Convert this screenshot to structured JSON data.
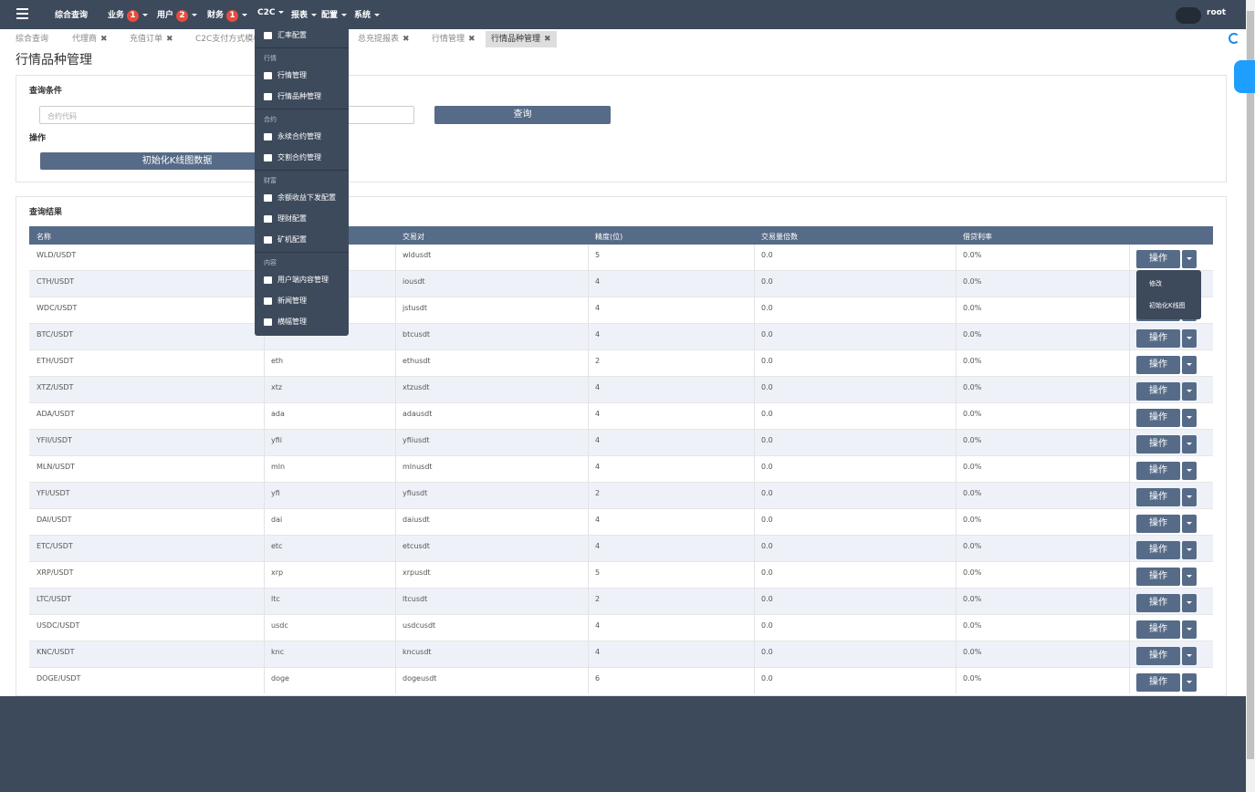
{
  "nav": {
    "items": [
      {
        "label": "综合查询"
      },
      {
        "label": "业务",
        "badge": 1
      },
      {
        "label": "用户",
        "badge": 2
      },
      {
        "label": "财务",
        "badge": 1
      },
      {
        "label": "C2C"
      },
      {
        "label": "报表"
      },
      {
        "label": "配置"
      },
      {
        "label": "系统"
      }
    ],
    "user": "root"
  },
  "tabs": [
    "综合查询",
    "代理商",
    "充值订单",
    "C2C支付方式模板",
    "总充提报表",
    "行情管理",
    "行情品种管理"
  ],
  "page_title": "行情品种管理",
  "query": {
    "heading": "查询条件",
    "placeholder": "合约代码",
    "button": "查询",
    "ops_heading": "操作",
    "init_button": "初始化K线图数据"
  },
  "results": {
    "heading": "查询结果",
    "columns": [
      "名称",
      null,
      "交易对",
      "精度(位)",
      "交易量倍数",
      "借贷利率"
    ],
    "rows": [
      [
        "WLD/USDT",
        null,
        "wldusdt",
        "5",
        "0.0",
        "0.0%"
      ],
      [
        "CTH/USDT",
        null,
        "iousdt",
        "4",
        "0.0",
        "0.0%"
      ],
      [
        "WDC/USDT",
        null,
        "jstusdt",
        "4",
        "0.0",
        "0.0%"
      ],
      [
        "BTC/USDT",
        null,
        "btcusdt",
        "4",
        "0.0",
        "0.0%"
      ],
      [
        "ETH/USDT",
        "eth",
        "ethusdt",
        "2",
        "0.0",
        "0.0%"
      ],
      [
        "XTZ/USDT",
        "xtz",
        "xtzusdt",
        "4",
        "0.0",
        "0.0%"
      ],
      [
        "ADA/USDT",
        "ada",
        "adausdt",
        "4",
        "0.0",
        "0.0%"
      ],
      [
        "YFII/USDT",
        "yfii",
        "yfiiusdt",
        "4",
        "0.0",
        "0.0%"
      ],
      [
        "MLN/USDT",
        "mln",
        "mlnusdt",
        "4",
        "0.0",
        "0.0%"
      ],
      [
        "YFI/USDT",
        "yfi",
        "yfiusdt",
        "2",
        "0.0",
        "0.0%"
      ],
      [
        "DAI/USDT",
        "dai",
        "daiusdt",
        "4",
        "0.0",
        "0.0%"
      ],
      [
        "ETC/USDT",
        "etc",
        "etcusdt",
        "4",
        "0.0",
        "0.0%"
      ],
      [
        "XRP/USDT",
        "xrp",
        "xrpusdt",
        "5",
        "0.0",
        "0.0%"
      ],
      [
        "LTC/USDT",
        "ltc",
        "ltcusdt",
        "2",
        "0.0",
        "0.0%"
      ],
      [
        "USDC/USDT",
        "usdc",
        "usdcusdt",
        "4",
        "0.0",
        "0.0%"
      ],
      [
        "KNC/USDT",
        "knc",
        "kncusdt",
        "4",
        "0.0",
        "0.0%"
      ],
      [
        "DOGE/USDT",
        "doge",
        "dogeusdt",
        "6",
        "0.0",
        "0.0%"
      ]
    ],
    "action": "操作",
    "action_menu": [
      "修改",
      "初始化K线图"
    ]
  },
  "menu": {
    "sections": [
      {
        "items": [
          "汇率配置"
        ]
      },
      {
        "title": "行情",
        "items": [
          "行情管理",
          "行情品种管理"
        ]
      },
      {
        "title": "合约",
        "items": [
          "永续合约管理",
          "交割合约管理"
        ]
      },
      {
        "title": "财富",
        "items": [
          "余额收益下发配置",
          "理财配置",
          "矿机配置"
        ]
      },
      {
        "title": "内容",
        "items": [
          "用户端内容管理",
          "新闻管理",
          "横幅管理"
        ]
      }
    ]
  }
}
